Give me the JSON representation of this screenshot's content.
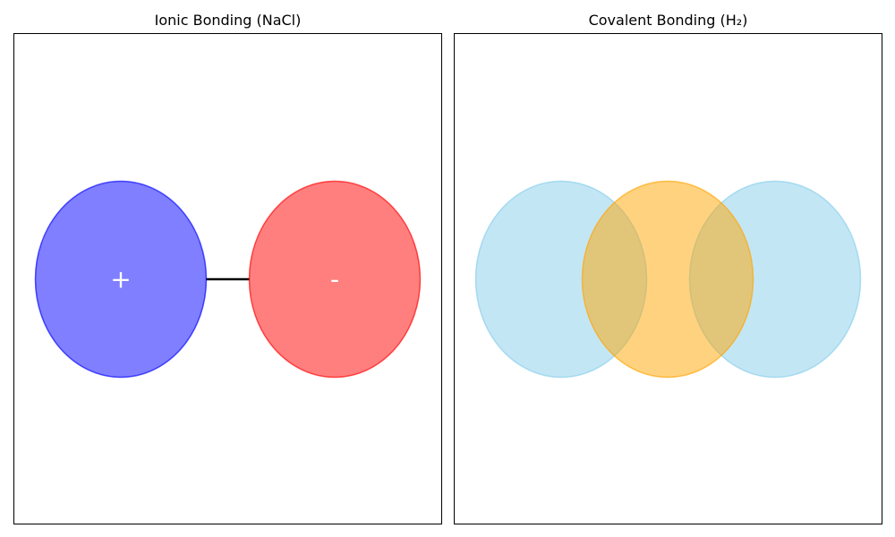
{
  "panels": {
    "ionic": {
      "title": "Ionic Bonding (NaCl)",
      "cation": {
        "symbol": "+",
        "color": "#0000ff",
        "opacity": 0.5
      },
      "anion": {
        "symbol": "-",
        "color": "#ff0000",
        "opacity": 0.5
      },
      "bond_color": "#000000"
    },
    "covalent": {
      "title": "Covalent Bonding (H₂)",
      "atom_color": "#87ceeb",
      "shared_electron_color": "#ffa500",
      "opacity": 0.5
    }
  }
}
